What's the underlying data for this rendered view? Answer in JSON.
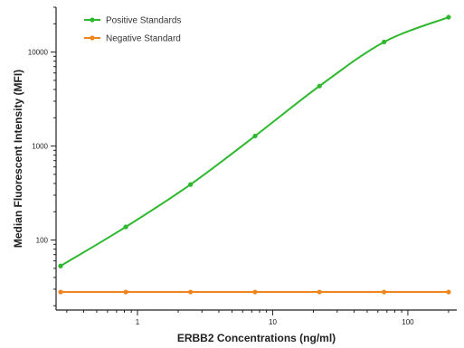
{
  "chart_data": {
    "type": "line",
    "xlabel": "ERBB2 Concentrations (ng/ml)",
    "ylabel": "Median  Fluorescent Intensity  (MFI)",
    "x_scale": "log",
    "y_scale": "log",
    "xlim": [
      0.25,
      230
    ],
    "ylim": [
      18,
      30000
    ],
    "x_ticks": [
      1,
      10,
      100
    ],
    "x_tick_labels": [
      "1",
      "10",
      "100"
    ],
    "y_ticks": [
      100,
      1000,
      10000
    ],
    "y_tick_labels": [
      "100",
      "1000",
      "10000"
    ],
    "grid": false,
    "legend_position": "top-left",
    "series": [
      {
        "name": "Positive Standards",
        "color": "#2db82d",
        "x": [
          0.27,
          0.82,
          2.47,
          7.41,
          22.2,
          66.7,
          200
        ],
        "y": [
          53,
          138,
          390,
          1280,
          4350,
          12800,
          23500
        ]
      },
      {
        "name": "Negative Standard",
        "color": "#f0841e",
        "x": [
          0.27,
          0.82,
          2.47,
          7.41,
          22.2,
          66.7,
          200
        ],
        "y": [
          28,
          28,
          28,
          28,
          28,
          28,
          28
        ]
      }
    ]
  }
}
